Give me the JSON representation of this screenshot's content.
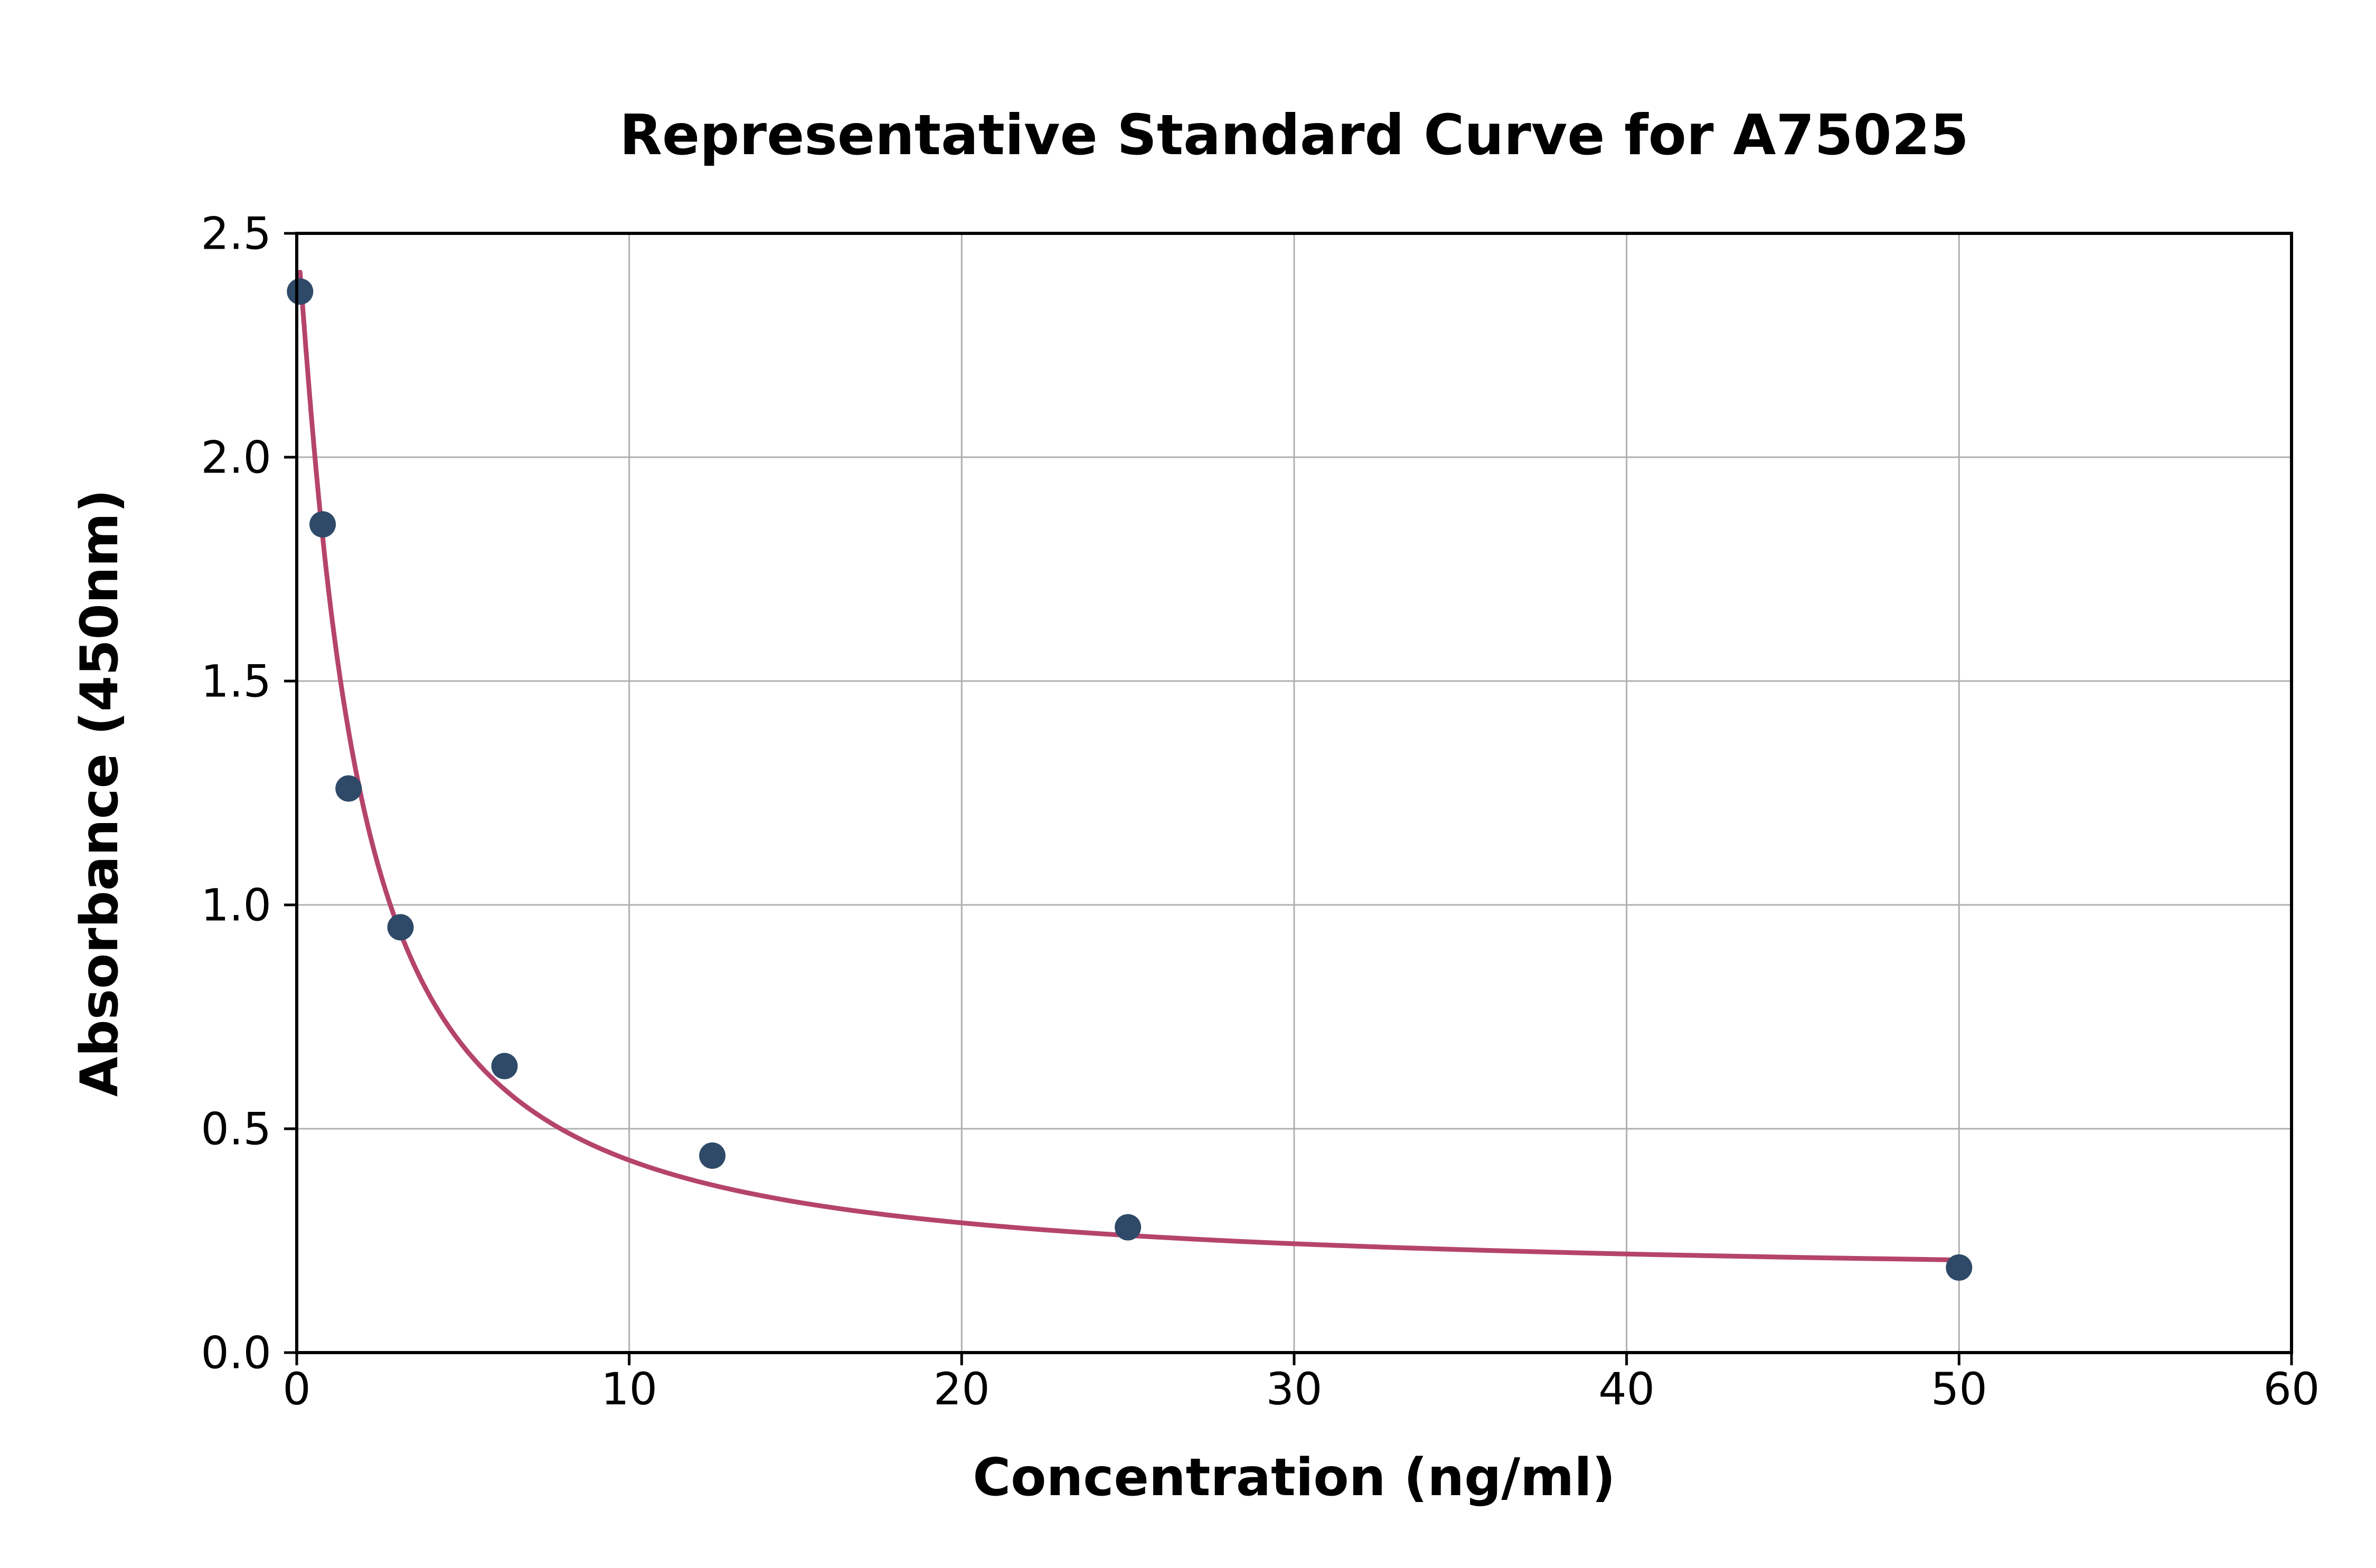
{
  "chart_data": {
    "type": "scatter",
    "title": "Representative Standard Curve for A75025",
    "xlabel": "Concentration (ng/ml)",
    "ylabel": "Absorbance (450nm)",
    "xlim": [
      0,
      60
    ],
    "ylim": [
      0,
      2.5
    ],
    "xticks": [
      0,
      10,
      20,
      30,
      40,
      50,
      60
    ],
    "xtick_labels": [
      "0",
      "10",
      "20",
      "30",
      "40",
      "50",
      "60"
    ],
    "yticks": [
      0,
      0.5,
      1.0,
      1.5,
      2.0,
      2.5
    ],
    "ytick_labels": [
      "0.0",
      "0.5",
      "1.0",
      "1.5",
      "2.0",
      "2.5"
    ],
    "grid": true,
    "legend": "none",
    "points": {
      "x": [
        0.1,
        0.78,
        1.56,
        3.12,
        6.25,
        12.5,
        25,
        50
      ],
      "y": [
        2.37,
        1.85,
        1.26,
        0.95,
        0.64,
        0.44,
        0.28,
        0.19
      ]
    },
    "fit_curve": {
      "model": "4PL",
      "params": {
        "a": 2.5,
        "b": 1.15,
        "c": 1.7,
        "d": 0.16
      },
      "x_range": [
        0.1,
        50
      ]
    },
    "colors": {
      "curve": "#b5446c",
      "points": "#2e4a68",
      "grid": "#b0b0b0",
      "axes": "#000000",
      "background": "#ffffff"
    }
  }
}
